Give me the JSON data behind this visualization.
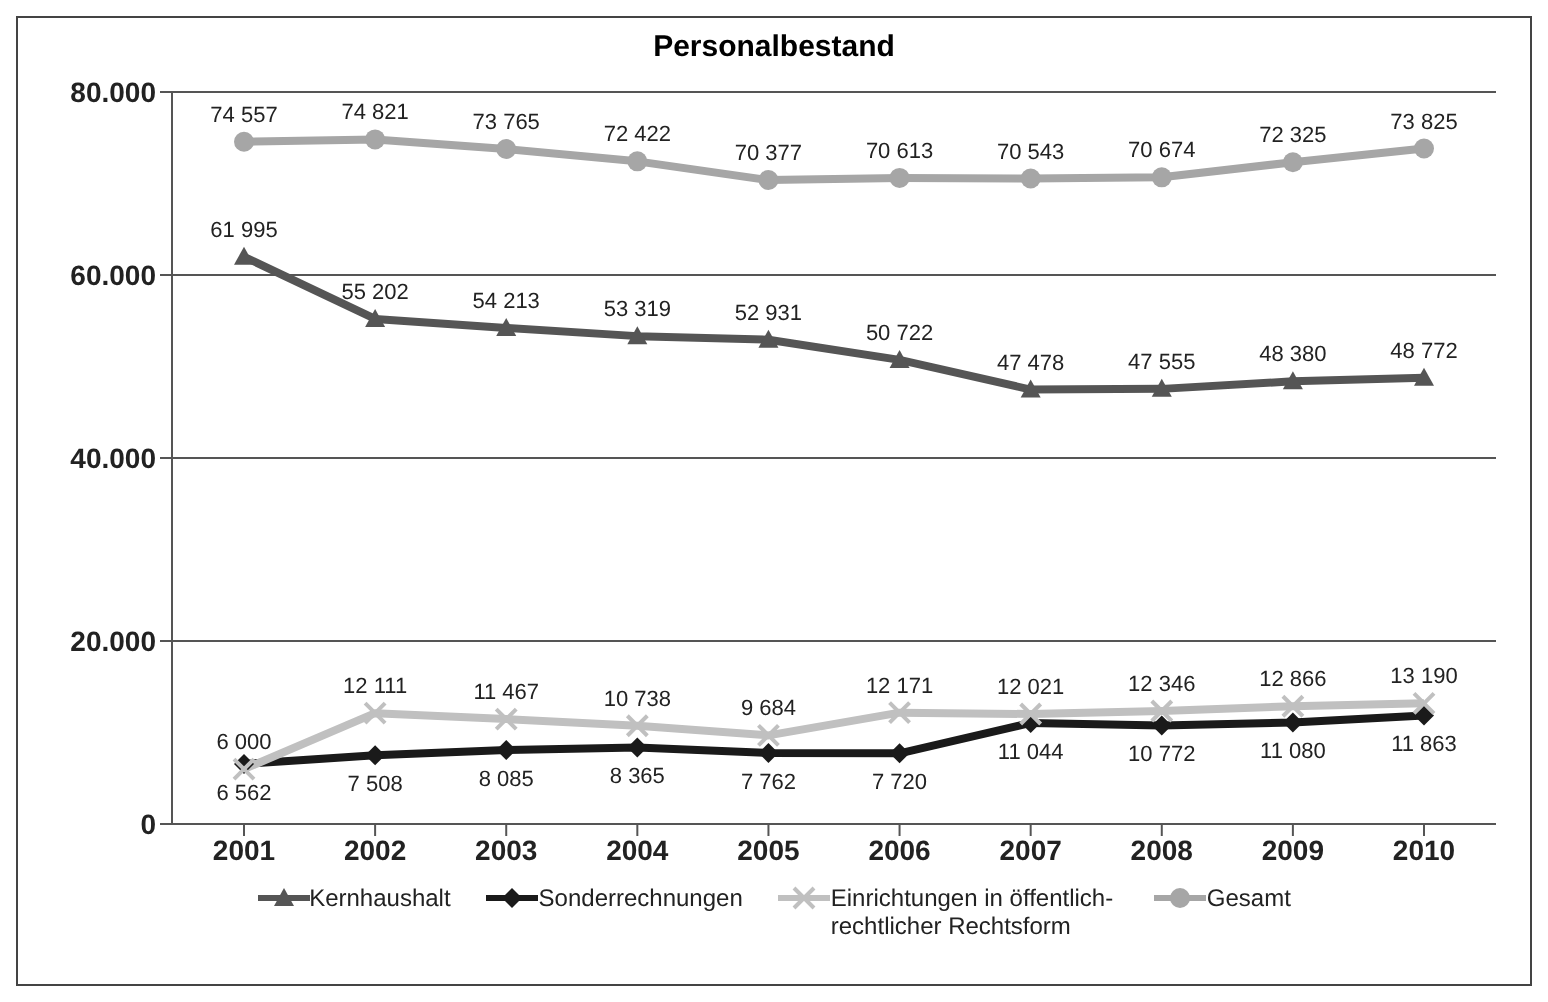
{
  "chart_data": {
    "type": "line",
    "title": "Personalbestand",
    "categories": [
      "2001",
      "2002",
      "2003",
      "2004",
      "2005",
      "2006",
      "2007",
      "2008",
      "2009",
      "2010"
    ],
    "series": [
      {
        "name": "Kernhaushalt",
        "color": "#555555",
        "marker": "triangle",
        "values": [
          61995,
          55202,
          54213,
          53319,
          52931,
          50722,
          47478,
          47555,
          48380,
          48772
        ],
        "value_labels": [
          "61 995",
          "55 202",
          "54 213",
          "53 319",
          "52 931",
          "50 722",
          "47 478",
          "47 555",
          "48 380",
          "48 772"
        ]
      },
      {
        "name": "Sonderrechnungen",
        "color": "#1a1a1a",
        "marker": "diamond",
        "values": [
          6562,
          7508,
          8085,
          8365,
          7762,
          7720,
          11044,
          10772,
          11080,
          11863
        ],
        "value_labels": [
          "6 562",
          "7 508",
          "8 085",
          "8 365",
          "7 762",
          "7 720",
          "11 044",
          "10 772",
          "11 080",
          "11 863"
        ]
      },
      {
        "name": "Einrichtungen in öffentlich-rechtlicher Rechtsform",
        "color": "#c0c0c0",
        "marker": "cross",
        "values": [
          6000,
          12111,
          11467,
          10738,
          9684,
          12171,
          12021,
          12346,
          12866,
          13190
        ],
        "value_labels": [
          "6 000",
          "12 111",
          "11 467",
          "10 738",
          "9 684",
          "12 171",
          "12 021",
          "12 346",
          "12 866",
          "13 190"
        ]
      },
      {
        "name": "Gesamt",
        "color": "#a6a6a6",
        "marker": "circle",
        "values": [
          74557,
          74821,
          73765,
          72422,
          70377,
          70613,
          70543,
          70674,
          72325,
          73825
        ],
        "value_labels": [
          "74 557",
          "74 821",
          "73 765",
          "72 422",
          "70 377",
          "70 613",
          "70 543",
          "70 674",
          "72 325",
          "73 825"
        ]
      }
    ],
    "ylim": [
      0,
      80000
    ],
    "yticks": [
      {
        "value": 0,
        "label": "0"
      },
      {
        "value": 20000,
        "label": "20.000"
      },
      {
        "value": 40000,
        "label": "40.000"
      },
      {
        "value": 60000,
        "label": "60.000"
      },
      {
        "value": 80000,
        "label": "80.000"
      }
    ],
    "grid": "y",
    "legend": "bottom",
    "line_style": "solid"
  }
}
